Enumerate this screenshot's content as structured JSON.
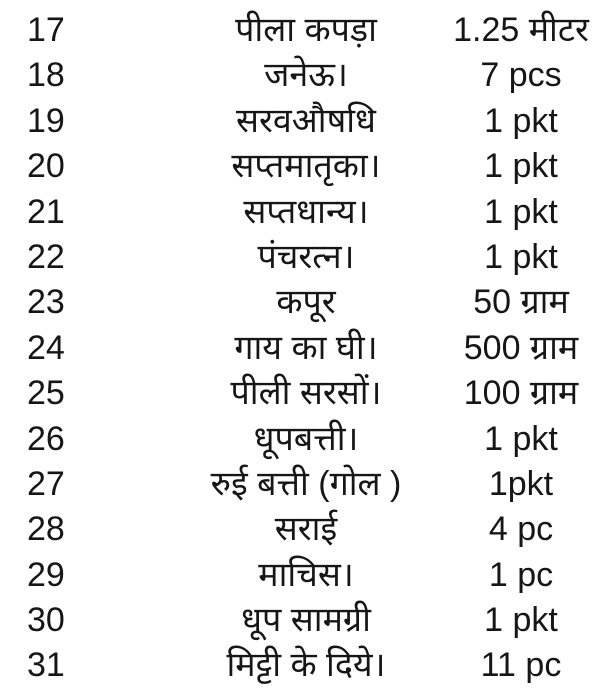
{
  "page": {
    "background_color": "#ffffff",
    "text_color": "#161616"
  },
  "items_table": {
    "columns": [
      "serial",
      "item",
      "quantity"
    ],
    "rows": [
      {
        "serial": "17",
        "item": "पीला कपड़ा",
        "quantity": "1.25 मीटर"
      },
      {
        "serial": "18",
        "item": "जनेऊ।",
        "quantity": "7 pcs"
      },
      {
        "serial": "19",
        "item": "सरवऔषधि",
        "quantity": "1 pkt"
      },
      {
        "serial": "20",
        "item": "सप्तमातृका।",
        "quantity": "1 pkt"
      },
      {
        "serial": "21",
        "item": "सप्तधान्य।",
        "quantity": "1 pkt"
      },
      {
        "serial": "22",
        "item": "पंचरत्न।",
        "quantity": "1 pkt"
      },
      {
        "serial": "23",
        "item": "कपूर",
        "quantity": "50 ग्राम"
      },
      {
        "serial": "24",
        "item": "गाय का घी।",
        "quantity": "500 ग्राम"
      },
      {
        "serial": "25",
        "item": "पीली सरसों।",
        "quantity": "100 ग्राम"
      },
      {
        "serial": "26",
        "item": "धूपबत्ती।",
        "quantity": "1 pkt"
      },
      {
        "serial": "27",
        "item": "रुई बत्ती (गोल )",
        "quantity": "1pkt"
      },
      {
        "serial": "28",
        "item": "सराई",
        "quantity": "4 pc"
      },
      {
        "serial": "29",
        "item": "माचिस।",
        "quantity": "1 pc"
      },
      {
        "serial": "30",
        "item": "धूप सामग्री",
        "quantity": "1 pkt"
      },
      {
        "serial": "31",
        "item": "मिट्टी के दिये।",
        "quantity": "11 pc"
      }
    ]
  }
}
